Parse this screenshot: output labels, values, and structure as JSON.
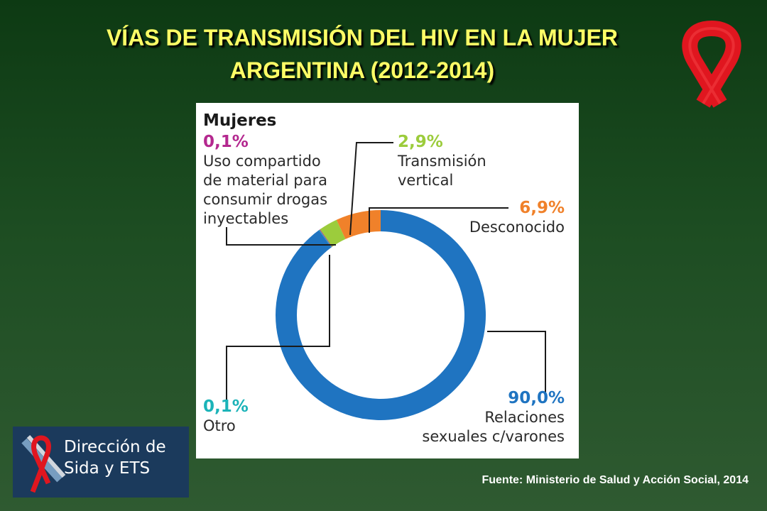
{
  "title": {
    "line1": "VÍAS DE TRANSMISIÓN DEL HIV EN LA MUJER",
    "line2": "ARGENTINA (2012-2014)"
  },
  "chart_data": {
    "type": "pie",
    "variant": "donut",
    "heading": "Mujeres",
    "slices": [
      {
        "name_lines": [
          "Relaciones",
          "sexuales c/varones"
        ],
        "value": 90.0,
        "label": "90,0%",
        "color": "#1f74c1"
      },
      {
        "name_lines": [
          "Otro"
        ],
        "value": 0.1,
        "label": "0,1%",
        "color": "#1bb3b8"
      },
      {
        "name_lines": [
          "Uso compartido",
          "de material para",
          "consumir drogas",
          "inyectables"
        ],
        "value": 0.1,
        "label": "0,1%",
        "color": "#b4288f"
      },
      {
        "name_lines": [
          "Transmisión",
          "vertical"
        ],
        "value": 2.9,
        "label": "2,9%",
        "color": "#9ccc3c"
      },
      {
        "name_lines": [
          "Desconocido"
        ],
        "value": 6.9,
        "label": "6,9%",
        "color": "#f0812a"
      }
    ]
  },
  "logo": {
    "line1": "Dirección de",
    "line2": "Sida y ETS"
  },
  "source": "Fuente: Ministerio de Salud y Acción Social, 2014",
  "colors": {
    "title": "#ffff66",
    "ribbon": "#e0161f",
    "logo_bg": "#1b3a5c"
  }
}
